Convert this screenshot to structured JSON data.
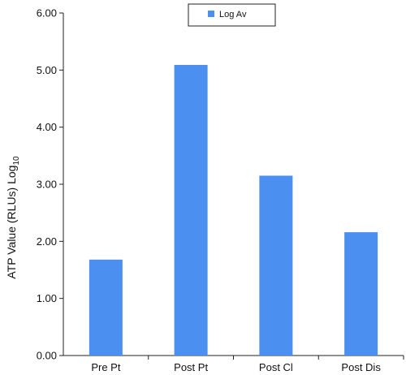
{
  "chart_data": {
    "type": "bar",
    "categories": [
      "Pre Pt",
      "Post Pt",
      "Post Cl",
      "Post Dis"
    ],
    "series": [
      {
        "name": "Log Av",
        "values": [
          1.68,
          5.09,
          3.15,
          2.16
        ],
        "color": "#4b8ff0"
      }
    ],
    "ylabel": "ATP Value (RLUs) Log",
    "ylabel_subscript": "10",
    "ylim": [
      0,
      6
    ],
    "yticks": [
      "0.00",
      "1.00",
      "2.00",
      "3.00",
      "4.00",
      "5.00",
      "6.00"
    ],
    "grid": false,
    "legend_position": "top-center"
  }
}
